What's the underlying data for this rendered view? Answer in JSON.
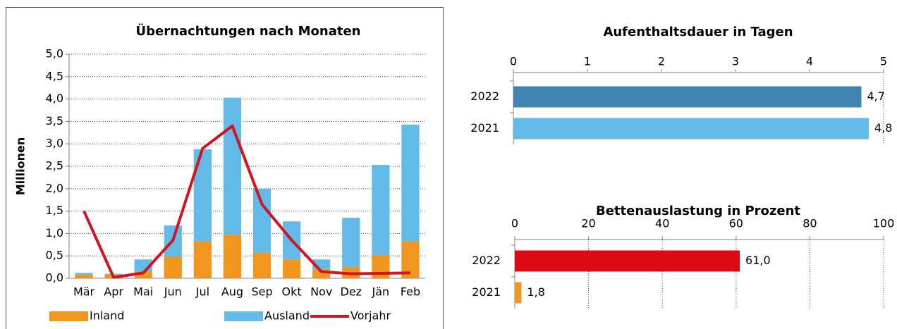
{
  "chart_data": [
    {
      "type": "bar",
      "stacked": true,
      "title": "Übernachtungen nach Monaten",
      "ylabel": "Millionen",
      "categories": [
        "Mär",
        "Apr",
        "Mai",
        "Jun",
        "Jul",
        "Aug",
        "Sep",
        "Okt",
        "Nov",
        "Dez",
        "Jän",
        "Feb"
      ],
      "series": [
        {
          "name": "Inland",
          "type": "bar",
          "color": "#f0961e",
          "values": [
            0.08,
            0.08,
            0.15,
            0.48,
            0.82,
            0.97,
            0.57,
            0.42,
            0.2,
            0.25,
            0.52,
            0.82
          ]
        },
        {
          "name": "Ausland",
          "type": "bar",
          "color": "#63b9e8",
          "values": [
            0.04,
            0.02,
            0.27,
            0.7,
            2.06,
            3.06,
            1.43,
            0.85,
            0.22,
            1.1,
            2.01,
            2.61
          ]
        },
        {
          "name": "Vorjahr",
          "type": "line",
          "color": "#d2141e",
          "values": [
            1.5,
            0.02,
            0.12,
            0.85,
            2.9,
            3.4,
            1.65,
            0.85,
            0.15,
            0.1,
            0.11,
            0.12
          ]
        }
      ],
      "ylim": [
        0,
        5
      ],
      "yticks": [
        {
          "value": 0,
          "label": "0,0"
        },
        {
          "value": 0.5,
          "label": "0,5"
        },
        {
          "value": 1,
          "label": "1,0"
        },
        {
          "value": 1.5,
          "label": "1,5"
        },
        {
          "value": 2,
          "label": "2,0"
        },
        {
          "value": 2.5,
          "label": "2,5"
        },
        {
          "value": 3,
          "label": "3,0"
        },
        {
          "value": 3.5,
          "label": "3,5"
        },
        {
          "value": 4,
          "label": "4,0"
        },
        {
          "value": 4.5,
          "label": "4,5"
        },
        {
          "value": 5,
          "label": "5,0"
        }
      ],
      "grid": true,
      "legend": "bottom"
    },
    {
      "type": "hbar",
      "title": "Aufenthaltsdauer in Tagen",
      "categories": [
        "2022",
        "2021"
      ],
      "values": [
        4.7,
        4.8
      ],
      "value_labels": [
        "4,7",
        "4,8"
      ],
      "colors": [
        "#3f84b0",
        "#63b9e8"
      ],
      "xlim": [
        0,
        5
      ],
      "xticks": [
        0,
        1,
        2,
        3,
        4,
        5
      ],
      "grid": false
    },
    {
      "type": "hbar",
      "title": "Bettenauslastung in Prozent",
      "categories": [
        "2022",
        "2021"
      ],
      "values": [
        61.0,
        1.8
      ],
      "value_labels": [
        "61,0",
        "1,8"
      ],
      "colors": [
        "#dc0a14",
        "#f0961e"
      ],
      "xlim": [
        0,
        100
      ],
      "xticks": [
        0,
        20,
        40,
        60,
        80,
        100
      ],
      "grid": true
    }
  ]
}
